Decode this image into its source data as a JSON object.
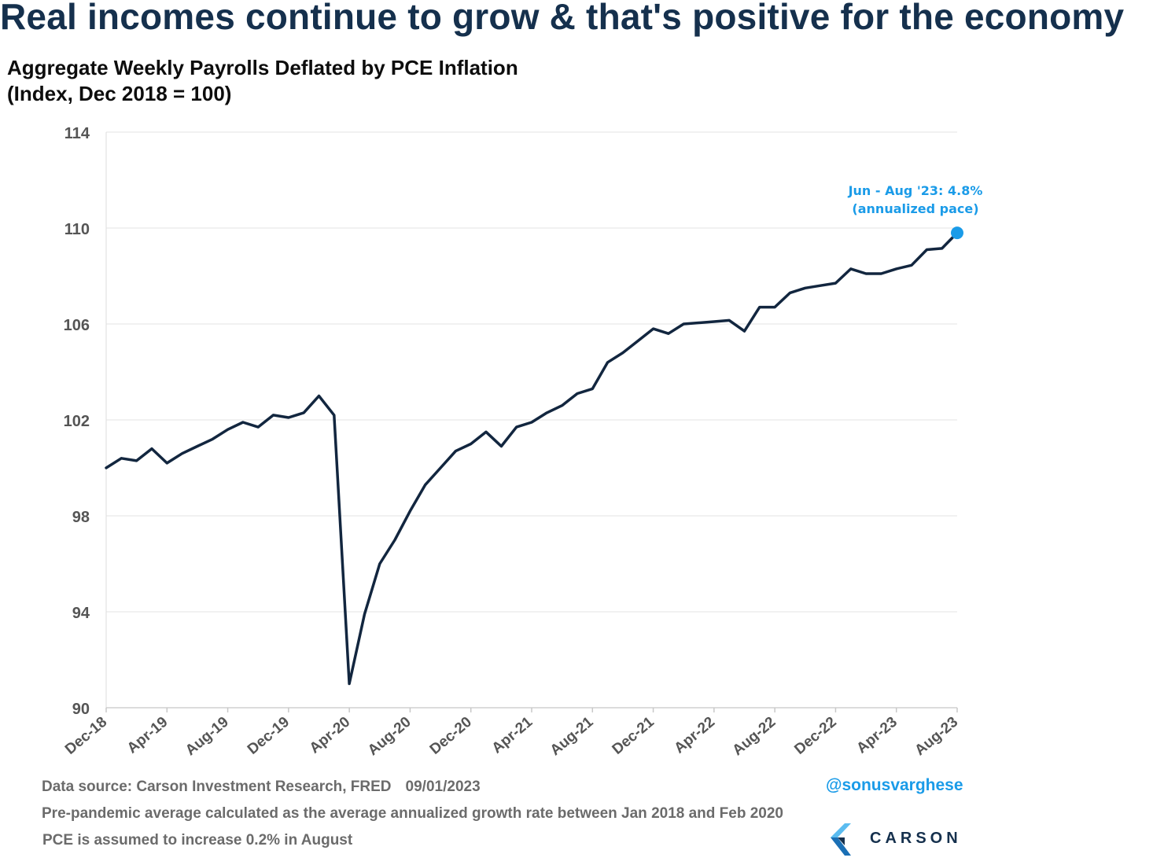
{
  "header": {
    "headline": "Real incomes continue to grow & that's positive for the economy"
  },
  "chart_data": {
    "type": "line",
    "title": "Aggregate Weekly Payrolls Deflated by PCE Inflation",
    "subtitle": "(Index, Dec 2018 = 100)",
    "xlabel": "",
    "ylabel": "",
    "ylim": [
      90,
      114
    ],
    "yticks": [
      114,
      110,
      106,
      102,
      98,
      94,
      90
    ],
    "xtick_labels": [
      "Dec-18",
      "Apr-19",
      "Aug-19",
      "Dec-19",
      "Apr-20",
      "Aug-20",
      "Dec-20",
      "Apr-21",
      "Aug-21",
      "Dec-21",
      "Apr-22",
      "Aug-22",
      "Dec-22",
      "Apr-23",
      "Aug-23"
    ],
    "x": [
      "Dec-18",
      "Jan-19",
      "Feb-19",
      "Mar-19",
      "Apr-19",
      "May-19",
      "Jun-19",
      "Jul-19",
      "Aug-19",
      "Sep-19",
      "Oct-19",
      "Nov-19",
      "Dec-19",
      "Jan-20",
      "Feb-20",
      "Mar-20",
      "Apr-20",
      "May-20",
      "Jun-20",
      "Jul-20",
      "Aug-20",
      "Sep-20",
      "Oct-20",
      "Nov-20",
      "Dec-20",
      "Jan-21",
      "Feb-21",
      "Mar-21",
      "Apr-21",
      "May-21",
      "Jun-21",
      "Jul-21",
      "Aug-21",
      "Sep-21",
      "Oct-21",
      "Nov-21",
      "Dec-21",
      "Jan-22",
      "Feb-22",
      "Mar-22",
      "Apr-22",
      "May-22",
      "Jun-22",
      "Jul-22",
      "Aug-22",
      "Sep-22",
      "Oct-22",
      "Nov-22",
      "Dec-22",
      "Jan-23",
      "Feb-23",
      "Mar-23",
      "Apr-23",
      "May-23",
      "Jun-23",
      "Jul-23",
      "Aug-23"
    ],
    "series": [
      {
        "color": "#12263f",
        "values": [
          100.0,
          100.4,
          100.3,
          100.8,
          100.2,
          100.6,
          100.9,
          101.2,
          101.6,
          101.9,
          101.7,
          102.2,
          102.1,
          102.3,
          103.0,
          102.2,
          91.0,
          93.9,
          96.0,
          97.0,
          98.2,
          99.3,
          100.0,
          100.7,
          101.0,
          101.5,
          100.9,
          101.7,
          101.9,
          102.3,
          102.6,
          103.1,
          103.3,
          104.4,
          104.8,
          105.3,
          105.8,
          105.6,
          106.0,
          106.05,
          106.1,
          106.15,
          105.7,
          106.7,
          106.7,
          107.3,
          107.5,
          107.6,
          107.7,
          108.3,
          108.1,
          108.1,
          108.3,
          108.45,
          109.1,
          109.15,
          109.8
        ]
      }
    ],
    "grid": true,
    "highlight": {
      "color": "#1a9be8",
      "line1": "Jun - Aug '23: 4.8%",
      "line2": "(annualized pace)"
    }
  },
  "footer": {
    "source": "Data source: Carson Investment Research, FRED",
    "date": "09/01/2023",
    "note1": "Pre-pandemic average calculated as the average annualized growth rate between Jan 2018 and Feb 2020",
    "note2": "PCE is assumed to increase 0.2% in August",
    "handle": "@sonusvarghese",
    "logo_text": "CARSON"
  }
}
